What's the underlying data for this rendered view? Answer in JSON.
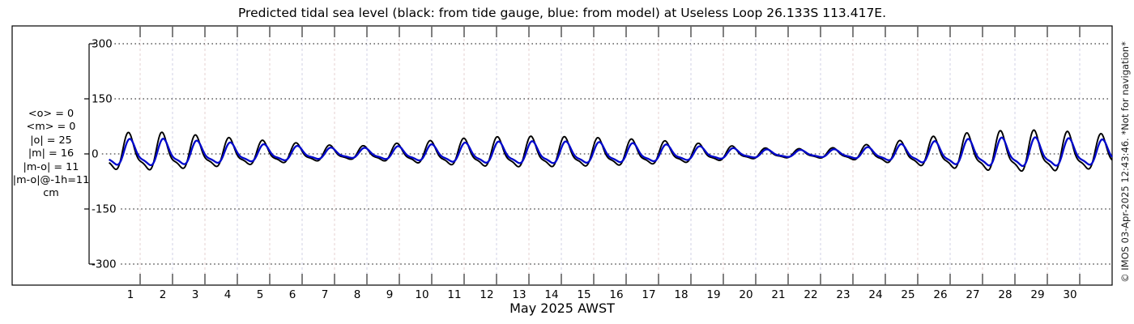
{
  "header": {
    "title": "Predicted tidal sea level (black: from tide gauge, blue: from model) at Useless Loop 26.133S 113.417E."
  },
  "stats_panel": {
    "lines": [
      "<o> = 0",
      "<m> = 0",
      "|o| = 25",
      "|m| = 16",
      "|m-o| = 11",
      "|m-o|@-1h=11",
      "cm"
    ]
  },
  "watermark": {
    "text": "© IMOS 03-Apr-2025 12:43:46. *Not for navigation*"
  },
  "chart_data": {
    "type": "line",
    "title": "Predicted tidal sea level (black: from tide gauge, blue: from model) at Useless Loop 26.133S 113.417E.",
    "xlabel": "May 2025 AWST",
    "x_tick_labels": [
      "1",
      "2",
      "3",
      "4",
      "5",
      "6",
      "7",
      "8",
      "9",
      "10",
      "11",
      "12",
      "13",
      "14",
      "15",
      "16",
      "17",
      "18",
      "19",
      "20",
      "21",
      "22",
      "23",
      "24",
      "25",
      "26",
      "27",
      "28",
      "29",
      "30"
    ],
    "x_range_days": [
      0,
      31
    ],
    "y_ticks": [
      300,
      150,
      0,
      -150,
      -300
    ],
    "y_range": [
      -300,
      300
    ],
    "y_unit": "cm",
    "grid": {
      "h_gridline_style": "dotted black at each y tick",
      "day_gridline_colors": [
        "#e6d2d2",
        "#d2d2e6"
      ]
    },
    "series": [
      {
        "name": "tide gauge (observed, black)",
        "color": "#000000",
        "daily_peak_amplitude_cm": [
          58,
          60,
          53,
          46,
          39,
          32,
          26,
          20,
          26,
          33,
          40,
          45,
          48,
          48,
          46,
          43,
          39,
          34,
          27,
          20,
          15,
          14,
          17,
          26,
          37,
          48,
          57,
          63,
          65,
          62,
          55
        ]
      },
      {
        "name": "model (blue)",
        "color": "#0008cc",
        "daily_peak_amplitude_cm": [
          41,
          43,
          38,
          33,
          28,
          24,
          19,
          15,
          19,
          24,
          29,
          33,
          35,
          35,
          34,
          32,
          29,
          25,
          20,
          15,
          12,
          11,
          13,
          19,
          27,
          35,
          41,
          45,
          46,
          44,
          40
        ]
      }
    ],
    "tide_model": {
      "diurnal_period_days": 1.0351,
      "first_peak_day": 0.67,
      "overtide_ratio": 0.32,
      "overtide_ratio_model": 0.3,
      "overtide_phase_rad": 0.7,
      "model_lag_days": 0.042
    }
  }
}
